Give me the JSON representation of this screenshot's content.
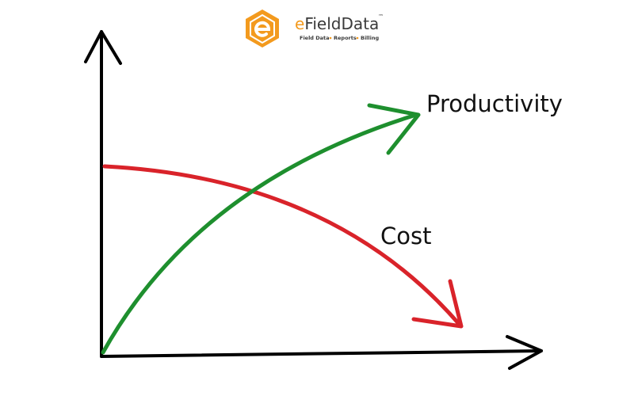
{
  "logo": {
    "prefix": "e",
    "name": "FieldData",
    "trademark": "™",
    "tagline": [
      "Field Data",
      "Reports",
      "Billing"
    ]
  },
  "curves": {
    "productivity": "Productivity",
    "cost": "Cost"
  }
}
